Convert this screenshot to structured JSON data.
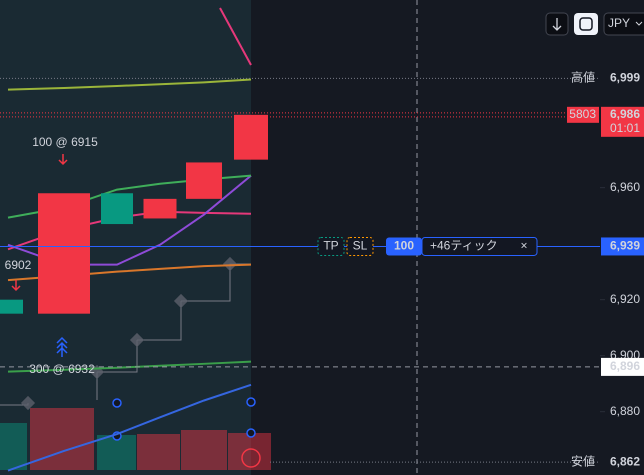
{
  "chart_data": {
    "type": "candlestick",
    "categories": [
      null,
      null,
      null,
      null,
      null,
      null
    ],
    "open": [
      6920,
      6915,
      6958,
      6949,
      6956,
      6970
    ],
    "high": {
      "tag": "高値",
      "value": 6999,
      "label": "6,999"
    },
    "low": {
      "tag": "安値",
      "value": 6862,
      "label": "6,862"
    },
    "close": [
      6915,
      6958,
      6947,
      6956,
      6969,
      6986
    ],
    "up_color": "#f23645",
    "down_color": "#089981",
    "volume": [
      47,
      62,
      35,
      36,
      40,
      37
    ],
    "lines": [
      {
        "color": "#e5387a",
        "values": [
          6938,
          6945,
          6949.3,
          6951.4,
          6951,
          6950.7
        ]
      },
      {
        "color": "#8e4bd8",
        "values": [
          6939.6,
          6932.5,
          6932.5,
          6939.6,
          6950.4,
          6964.3
        ]
      },
      {
        "color": "#3fae5a",
        "values": [
          6949.3,
          6952.9,
          6959.3,
          6961.4,
          6962.9,
          6964.3
        ]
      },
      {
        "color": "#d9772b",
        "values": [
          6927,
          6928.5,
          6930,
          6931,
          6932,
          6932.5
        ]
      },
      {
        "color": "#9bb53a",
        "values": [
          6995,
          6995.6,
          6996.3,
          6996.9,
          6997.6,
          6998.6
        ]
      },
      {
        "color": "#3a9f4a",
        "values": [
          6894.3,
          6895,
          6895.7,
          6896.4,
          6897.1,
          6897.9
        ]
      },
      {
        "color": "#3566e0",
        "values": [
          6859,
          6866,
          6872,
          6878,
          6884,
          6889.6
        ]
      }
    ],
    "ylim": [
      6857.4,
      7027
    ],
    "yticks": [
      {
        "value": 6880,
        "label": "6,880"
      },
      {
        "value": 6900,
        "label": "6,900"
      },
      {
        "value": 6920,
        "label": "6,920"
      },
      {
        "value": 6960,
        "label": "6,960"
      }
    ],
    "last": {
      "value": 6986,
      "label": "6,986",
      "count": "5803",
      "timer": "01:01"
    },
    "crosshair": {
      "value": 6896,
      "label": "6,896"
    },
    "order": {
      "value": 6939,
      "label": "6,939",
      "qty": "100",
      "pnl": "+46ティック",
      "tp": "TP",
      "sl": "SL",
      "close": "×"
    },
    "fills": [
      {
        "text": "100 @ 6915",
        "side": "sell"
      },
      {
        "text": "6902",
        "side": "sell"
      },
      {
        "text": "300 @ 6932",
        "side": "buy"
      }
    ],
    "currency": "JPY"
  }
}
